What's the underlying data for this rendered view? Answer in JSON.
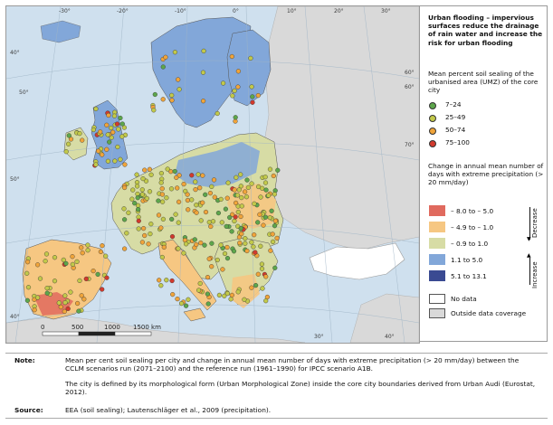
{
  "map": {
    "coordinate_labels": [
      "-30°",
      "-20°",
      "-10°",
      "0°",
      "10°",
      "20°",
      "30°",
      "40°",
      "50°",
      "60°",
      "70°",
      "60°",
      "50°",
      "40°",
      "30°",
      "40°"
    ],
    "scale_bar": {
      "values": [
        "0",
        "500",
        "1000",
        "1500 km"
      ]
    },
    "colors": {
      "sea": "#cfe0ee",
      "outside": "#d9d9d9",
      "graticule": "#9fb4c6"
    }
  },
  "legend": {
    "title": "Urban flooding – impervious surfaces reduce the drainage of rain water and increase the risk for urban flooding",
    "sealing_heading": "Mean percent soil sealing of the urbanised area (UMZ) of the  core city",
    "sealing_classes": [
      {
        "label": "7–24",
        "color": "#5da64b"
      },
      {
        "label": "25–49",
        "color": "#c2c94a"
      },
      {
        "label": "50–74",
        "color": "#f0a43a"
      },
      {
        "label": "75–100",
        "color": "#d23a2d"
      }
    ],
    "precip_heading": "Change in annual mean number of days with extreme precipitation (> 20 mm/day)",
    "precip_classes": [
      {
        "label": "– 8.0 to – 5.0",
        "color": "#e06a5e"
      },
      {
        "label": "– 4.9 to – 1.0",
        "color": "#f6c782"
      },
      {
        "label": "– 0.9 to 1.0",
        "color": "#d7dca5"
      },
      {
        "label": "1.1 to 5.0",
        "color": "#82a7d9"
      },
      {
        "label": "5.1 to 13.1",
        "color": "#3a4a92"
      }
    ],
    "decrease_label": "Decrease",
    "increase_label": "Increase",
    "no_data_label": "No data",
    "outside_label": "Outside data coverage",
    "no_data_color": "#ffffff",
    "outside_color": "#d9d9d9"
  },
  "notes": {
    "note_key": "Note:",
    "note_p1": "Mean per cent soil sealing per city and change in annual mean number of days with extreme precipitation (> 20 mm/day) between the CCLM scenarios run (2071–2100) and the reference run (1961–1990) for IPCC scenario A1B.",
    "note_p2": "The city is defined by its morphological form (Urban Morphological Zone) inside the core city boundaries derived from Urban Audi (Eurostat, 2012).",
    "source_key": "Source:",
    "source_text": "EEA (soil sealing); Lautenschläger et al., 2009 (precipitation)."
  }
}
